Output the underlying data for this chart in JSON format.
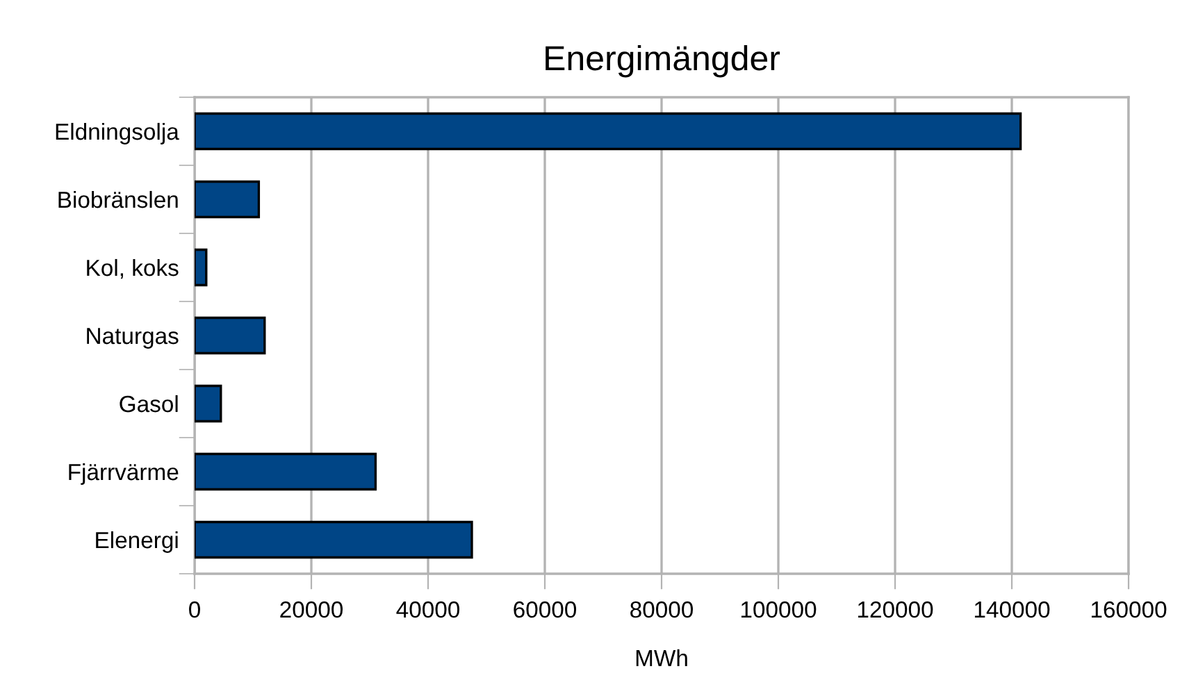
{
  "chart_data": {
    "type": "bar",
    "orientation": "horizontal",
    "title": "Energimängder",
    "xlabel": "MWh",
    "categories": [
      "Eldningsolja",
      "Biobränslen",
      "Kol, koks",
      "Naturgas",
      "Gasol",
      "Fjärrvärme",
      "Elenergi"
    ],
    "values": [
      141500,
      11000,
      2000,
      12000,
      4500,
      31000,
      47500
    ],
    "color": "#004586",
    "xlim": [
      0,
      160000
    ],
    "xticks": [
      0,
      20000,
      40000,
      60000,
      80000,
      100000,
      120000,
      140000,
      160000
    ],
    "grid": "x",
    "legend": false
  }
}
